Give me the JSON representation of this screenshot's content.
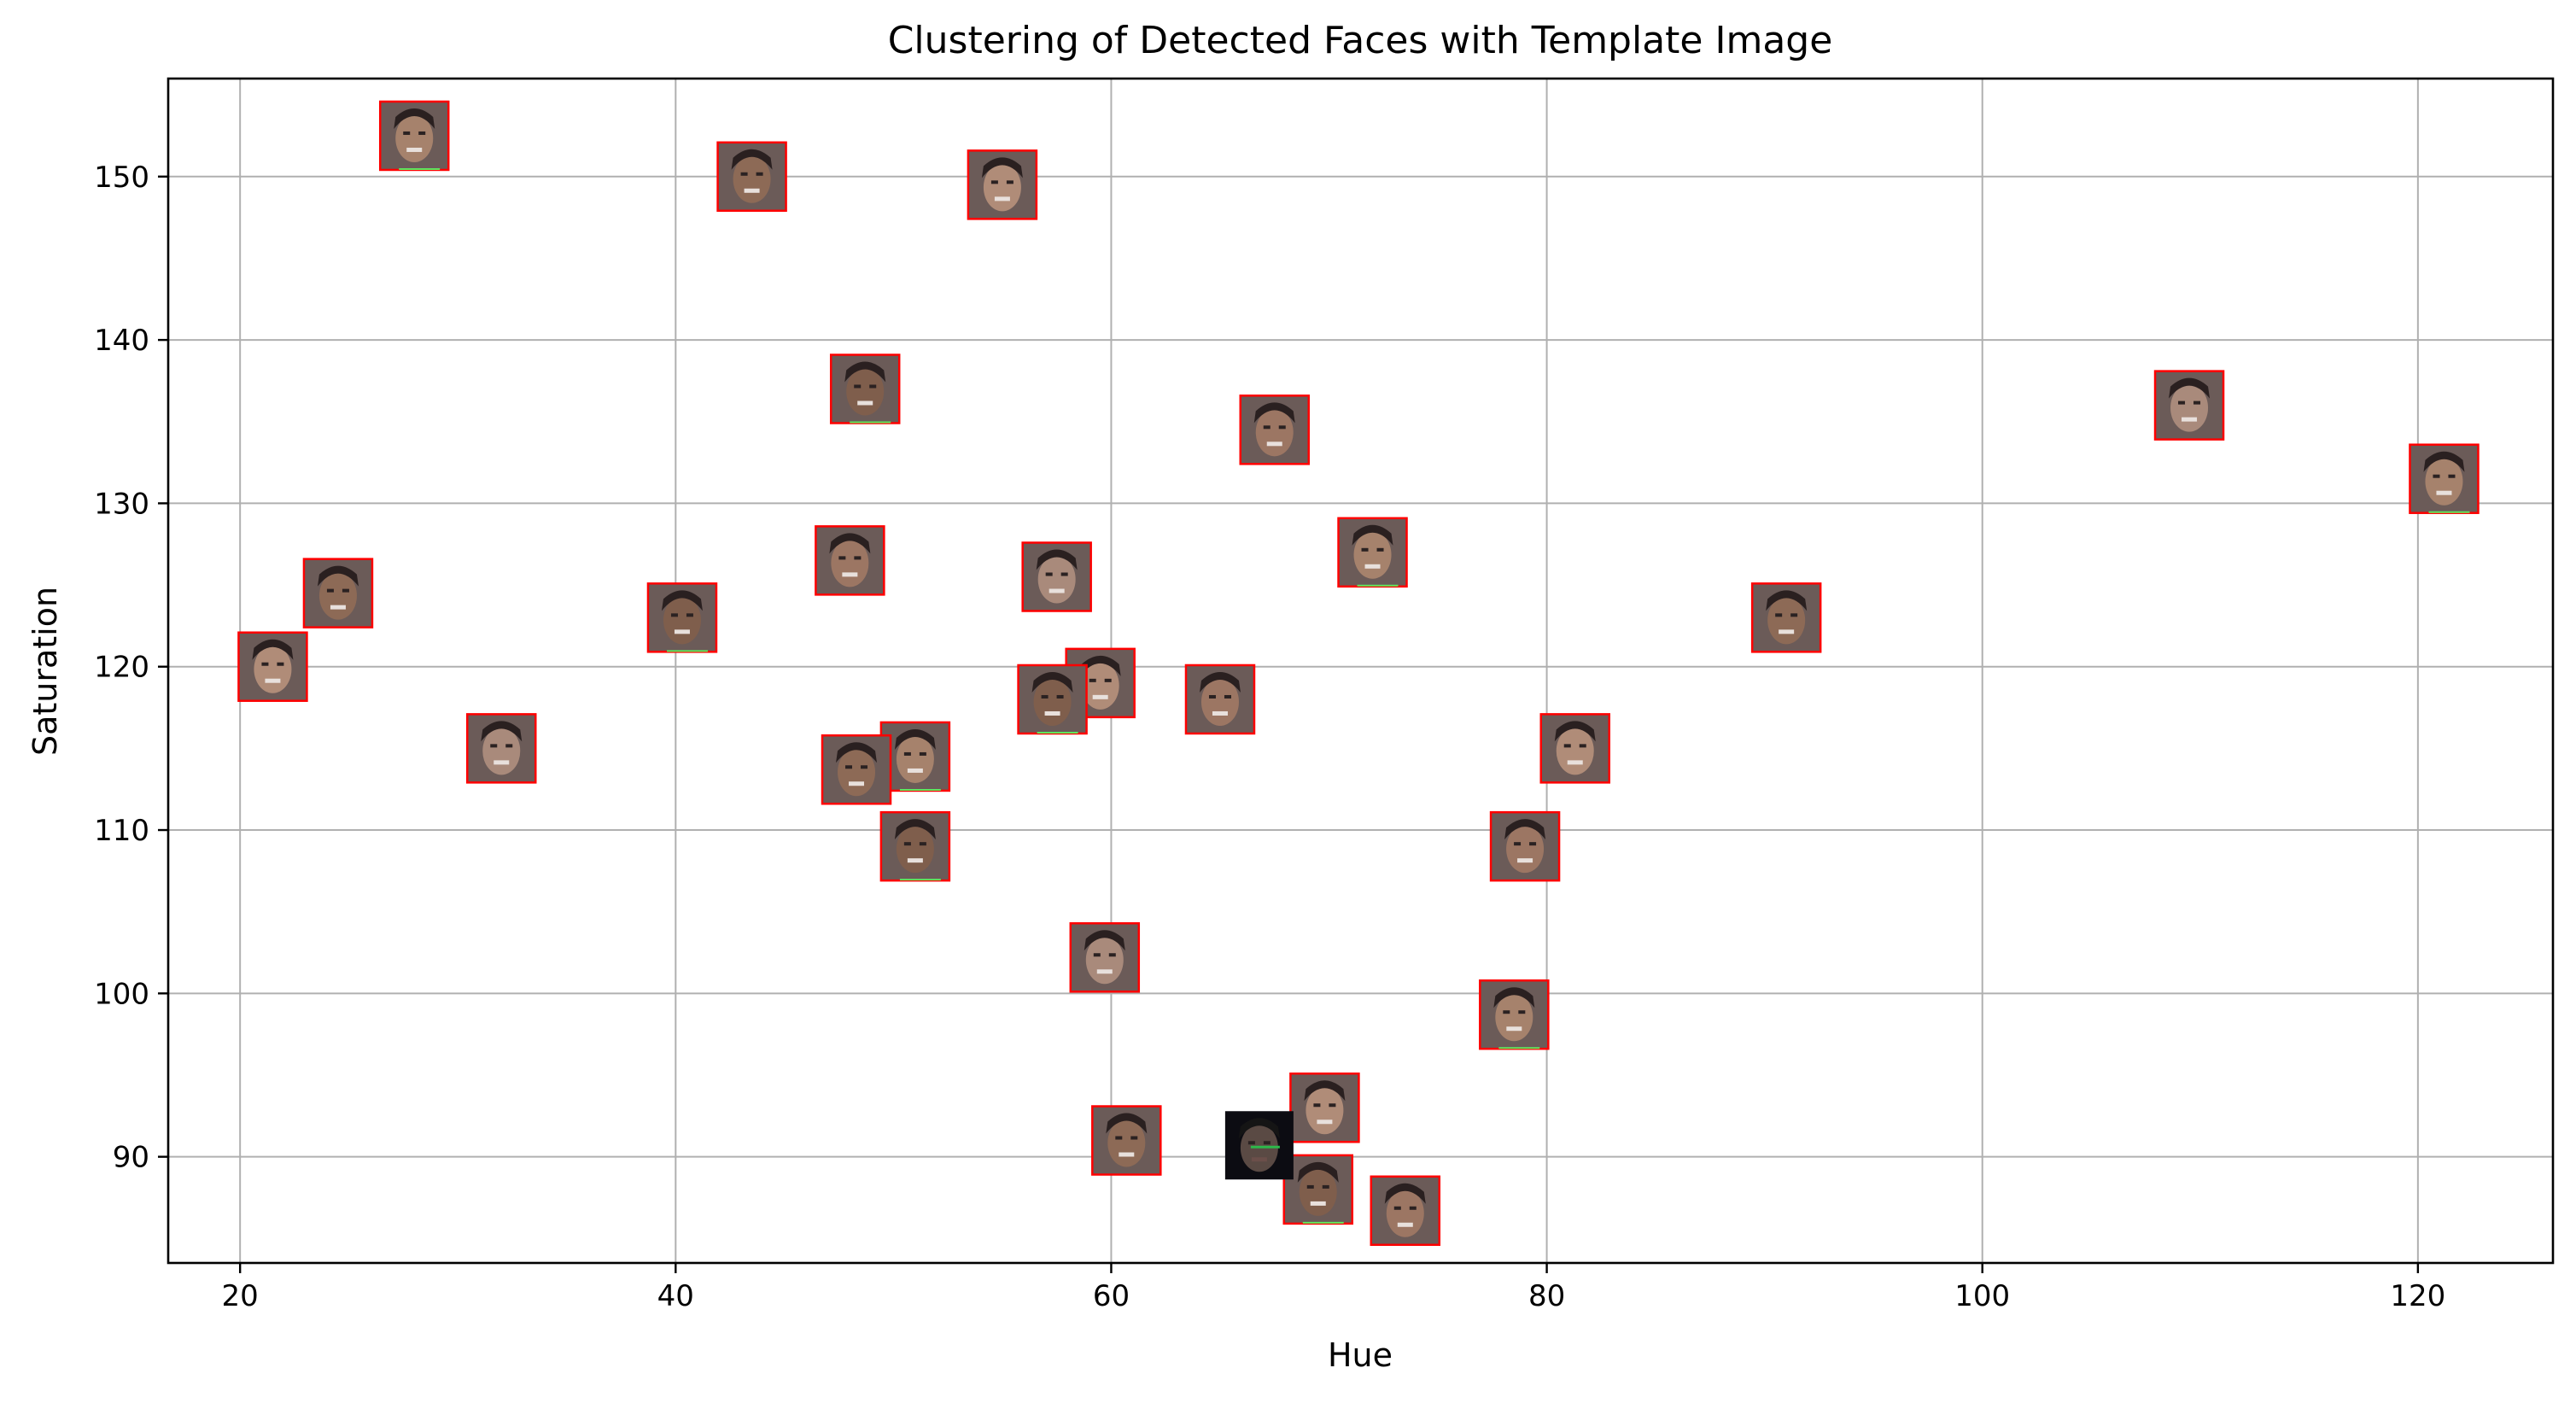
{
  "chart_data": {
    "type": "scatter",
    "title": "Clustering of Detected Faces with Template Image",
    "xlabel": "Hue",
    "ylabel": "Saturation",
    "xlim": [
      16.7,
      126.2
    ],
    "ylim": [
      83.5,
      156.0
    ],
    "xticks": [
      20,
      40,
      60,
      80,
      100,
      120
    ],
    "yticks": [
      90,
      100,
      110,
      120,
      130,
      140,
      150
    ],
    "grid": true,
    "points": [
      {
        "x": 28.0,
        "y": 152.5,
        "kind": "face"
      },
      {
        "x": 43.5,
        "y": 150.0,
        "kind": "face"
      },
      {
        "x": 55.0,
        "y": 149.5,
        "kind": "face"
      },
      {
        "x": 48.7,
        "y": 137.0,
        "kind": "face"
      },
      {
        "x": 67.5,
        "y": 134.5,
        "kind": "face"
      },
      {
        "x": 109.5,
        "y": 136.0,
        "kind": "face"
      },
      {
        "x": 121.2,
        "y": 131.5,
        "kind": "face"
      },
      {
        "x": 24.5,
        "y": 124.5,
        "kind": "face"
      },
      {
        "x": 21.5,
        "y": 120.0,
        "kind": "face"
      },
      {
        "x": 40.3,
        "y": 123.0,
        "kind": "face"
      },
      {
        "x": 48.0,
        "y": 126.5,
        "kind": "face"
      },
      {
        "x": 57.5,
        "y": 125.5,
        "kind": "face"
      },
      {
        "x": 72.0,
        "y": 127.0,
        "kind": "face"
      },
      {
        "x": 91.0,
        "y": 123.0,
        "kind": "face"
      },
      {
        "x": 59.5,
        "y": 119.0,
        "kind": "face"
      },
      {
        "x": 57.3,
        "y": 118.0,
        "kind": "face"
      },
      {
        "x": 65.0,
        "y": 118.0,
        "kind": "face"
      },
      {
        "x": 32.0,
        "y": 115.0,
        "kind": "face"
      },
      {
        "x": 51.0,
        "y": 114.5,
        "kind": "face"
      },
      {
        "x": 48.3,
        "y": 113.7,
        "kind": "face"
      },
      {
        "x": 81.3,
        "y": 115.0,
        "kind": "face"
      },
      {
        "x": 51.0,
        "y": 109.0,
        "kind": "face"
      },
      {
        "x": 79.0,
        "y": 109.0,
        "kind": "face"
      },
      {
        "x": 59.7,
        "y": 102.2,
        "kind": "face"
      },
      {
        "x": 78.5,
        "y": 98.7,
        "kind": "face"
      },
      {
        "x": 60.7,
        "y": 91.0,
        "kind": "face"
      },
      {
        "x": 69.8,
        "y": 93.0,
        "kind": "face"
      },
      {
        "x": 69.5,
        "y": 88.0,
        "kind": "face"
      },
      {
        "x": 73.5,
        "y": 86.7,
        "kind": "face"
      },
      {
        "x": 66.8,
        "y": 90.7,
        "kind": "template"
      }
    ]
  }
}
